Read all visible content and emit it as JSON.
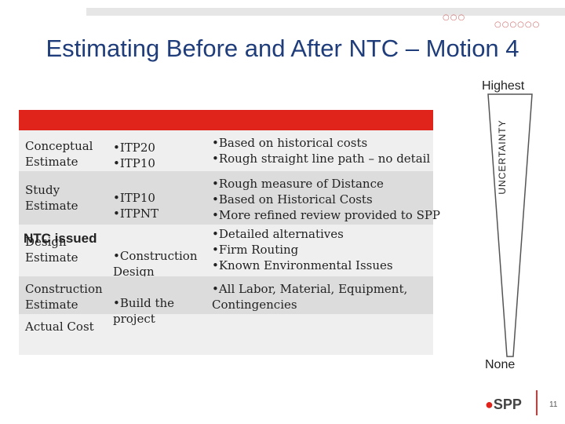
{
  "title": "Estimating Before and After NTC – Motion 4",
  "decor": {
    "dots_left": "○○○",
    "dots_right": "○○○○○○"
  },
  "uncertainty": {
    "axis_label": "UNCERTAINTY",
    "high": "Highest",
    "low": "None"
  },
  "ntc_label": "NTC issued",
  "rows": [
    {
      "stage": "Conceptual Estimate",
      "plans": "•ITP20\n•ITP10",
      "detail": "•Based on historical costs\n•Rough straight line path – no detail"
    },
    {
      "stage": "Study Estimate",
      "plans": "•ITP10\n•ITPNT",
      "detail": "•Rough measure of Distance\n•Based on Historical Costs\n•More refined review provided to SPP"
    },
    {
      "stage": "Design Estimate",
      "plans": "•Construction Design",
      "detail": "•Detailed alternatives\n•Firm Routing\n•Known Environmental Issues"
    },
    {
      "stage": "Construction Estimate",
      "plans": "•Build the project",
      "detail": "•All Labor, Material, Equipment, Contingencies"
    },
    {
      "stage": "Actual Cost",
      "plans": "",
      "detail": ""
    }
  ],
  "footer": {
    "logo": "SPP",
    "page_number": "11"
  },
  "colors": {
    "accent_red": "#e0241c",
    "title_blue": "#1f3d7a"
  }
}
